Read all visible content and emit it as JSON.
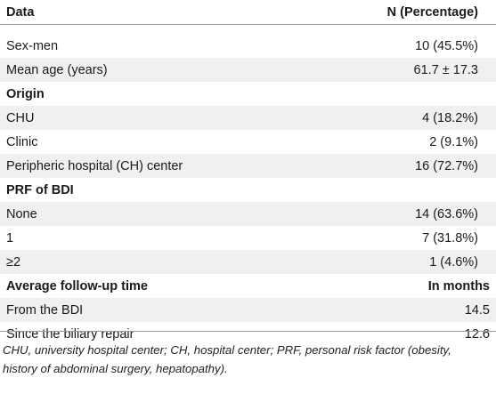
{
  "table": {
    "headers": {
      "col1": "Data",
      "col2": "N (Percentage)"
    },
    "rows": [
      {
        "label": "Sex-men",
        "value": "10 (45.5%)",
        "type": "data"
      },
      {
        "label": "Mean age (years)",
        "value": "61.7 ± 17.3",
        "type": "data"
      },
      {
        "label": "Origin",
        "value": "",
        "type": "section"
      },
      {
        "label": "CHU",
        "value": "4 (18.2%)",
        "type": "data"
      },
      {
        "label": "Clinic",
        "value": "2 (9.1%)",
        "type": "data"
      },
      {
        "label": "Peripheric hospital (CH) center",
        "value": "16 (72.7%)",
        "type": "data"
      },
      {
        "label": "PRF of BDI",
        "value": "",
        "type": "section"
      },
      {
        "label": "None",
        "value": "14 (63.6%)",
        "type": "data"
      },
      {
        "label": "1",
        "value": "7 (31.8%)",
        "type": "data"
      },
      {
        "label": "≥2",
        "value": "1 (4.6%)",
        "type": "data"
      },
      {
        "label": "Average follow-up time",
        "value": "In months",
        "type": "section-valued"
      },
      {
        "label": "From the BDI",
        "value": "14.5",
        "type": "num"
      },
      {
        "label": "Since the biliary repair",
        "value": "12.6",
        "type": "num"
      }
    ]
  },
  "footnote": "CHU, university hospital center; CH, hospital center; PRF, personal risk factor (obesity, history of abdominal surgery, hepatopathy)."
}
